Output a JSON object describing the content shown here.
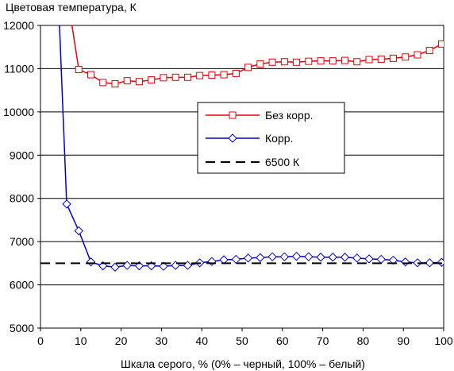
{
  "chart_data": {
    "type": "line",
    "title": "",
    "ylabel": "Цветовая температура, К",
    "xlabel": "Шкала серого, % (0% – черный, 100% – белый)",
    "xlim": [
      0,
      100
    ],
    "ylim": [
      5000,
      12000
    ],
    "xticks": [
      0,
      10,
      20,
      30,
      40,
      50,
      60,
      70,
      80,
      90,
      100
    ],
    "yticks": [
      5000,
      6000,
      7000,
      8000,
      9000,
      10000,
      11000,
      12000
    ],
    "grid": "horizontal",
    "legend_position": "center-right",
    "series": [
      {
        "name": "Без корр.",
        "color": "#e8000b",
        "marker": "square",
        "points": [
          [
            4.5,
            14000
          ],
          [
            9.5,
            10980
          ],
          [
            12.5,
            10860
          ],
          [
            15.5,
            10680
          ],
          [
            18.5,
            10650
          ],
          [
            21.5,
            10720
          ],
          [
            24.5,
            10700
          ],
          [
            27.5,
            10740
          ],
          [
            30.5,
            10790
          ],
          [
            33.5,
            10800
          ],
          [
            36.5,
            10800
          ],
          [
            39.5,
            10840
          ],
          [
            42.5,
            10850
          ],
          [
            45.5,
            10860
          ],
          [
            48.5,
            10890
          ],
          [
            51.5,
            11030
          ],
          [
            54.5,
            11110
          ],
          [
            57.5,
            11150
          ],
          [
            60.5,
            11160
          ],
          [
            63.5,
            11150
          ],
          [
            66.5,
            11170
          ],
          [
            69.5,
            11180
          ],
          [
            72.5,
            11180
          ],
          [
            75.5,
            11190
          ],
          [
            78.5,
            11160
          ],
          [
            81.5,
            11210
          ],
          [
            84.5,
            11220
          ],
          [
            87.5,
            11240
          ],
          [
            90.5,
            11270
          ],
          [
            93.5,
            11320
          ],
          [
            96.5,
            11420
          ],
          [
            99.5,
            11570
          ]
        ]
      },
      {
        "name": "Корр.",
        "color": "#0000cc",
        "marker": "diamond",
        "points": [
          [
            4.5,
            12500
          ],
          [
            6.5,
            7870
          ],
          [
            9.5,
            7250
          ],
          [
            12.5,
            6530
          ],
          [
            15.5,
            6440
          ],
          [
            18.5,
            6410
          ],
          [
            21.5,
            6450
          ],
          [
            24.5,
            6440
          ],
          [
            27.5,
            6440
          ],
          [
            30.5,
            6430
          ],
          [
            33.5,
            6450
          ],
          [
            36.5,
            6450
          ],
          [
            39.5,
            6510
          ],
          [
            42.5,
            6540
          ],
          [
            45.5,
            6580
          ],
          [
            48.5,
            6590
          ],
          [
            51.5,
            6620
          ],
          [
            54.5,
            6630
          ],
          [
            57.5,
            6650
          ],
          [
            60.5,
            6650
          ],
          [
            63.5,
            6660
          ],
          [
            66.5,
            6650
          ],
          [
            69.5,
            6640
          ],
          [
            72.5,
            6640
          ],
          [
            75.5,
            6640
          ],
          [
            78.5,
            6620
          ],
          [
            81.5,
            6600
          ],
          [
            84.5,
            6590
          ],
          [
            87.5,
            6570
          ],
          [
            90.5,
            6530
          ],
          [
            93.5,
            6510
          ],
          [
            96.5,
            6510
          ],
          [
            99.5,
            6520
          ]
        ]
      },
      {
        "name": "6500 К",
        "color": "#000000",
        "marker": "none",
        "dashed": true,
        "points": [
          [
            0,
            6500
          ],
          [
            100,
            6500
          ]
        ]
      }
    ]
  }
}
